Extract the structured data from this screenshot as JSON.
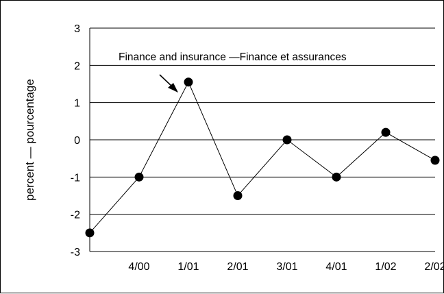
{
  "chart_data": {
    "type": "line",
    "x": [
      "",
      "4/00",
      "1/01",
      "2/01",
      "3/01",
      "4/01",
      "1/02",
      "2/02"
    ],
    "series": [
      {
        "name": "Finance and insurance —Finance et assurances",
        "values": [
          -2.5,
          -1.0,
          1.55,
          -1.5,
          0.0,
          -1.0,
          0.2,
          -0.55
        ]
      }
    ],
    "ylabel": "percent — pourcentage",
    "xlabel": "",
    "ylim": [
      -3,
      3
    ],
    "yticks": [
      3,
      2,
      1,
      0,
      -1,
      -2,
      -3
    ],
    "ytick_labels": [
      "3",
      "2",
      "1",
      "0",
      "-1",
      "-2",
      "-3"
    ],
    "grid": "horizontal",
    "annotation": {
      "text": "Finance and insurance —Finance et assurances",
      "points_to_index": 2
    },
    "colors": {
      "line": "#000000",
      "marker": "#000000",
      "grid": "#000000"
    }
  }
}
